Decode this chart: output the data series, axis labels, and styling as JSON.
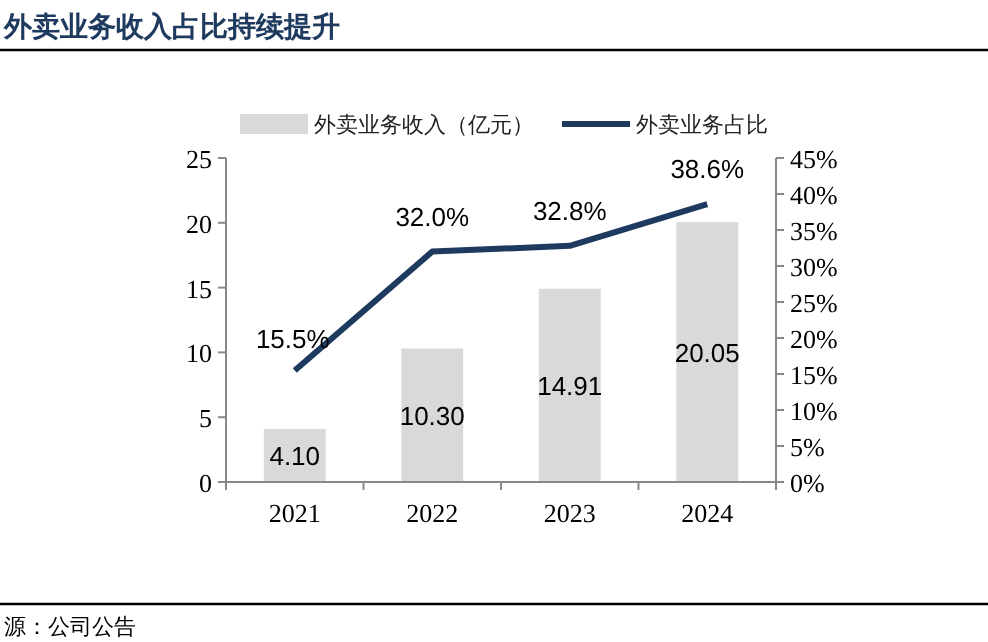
{
  "chart_data": {
    "type": "bar",
    "title": "外卖业务收入占比持续提升",
    "categories": [
      "2021",
      "2022",
      "2023",
      "2024"
    ],
    "series": [
      {
        "name": "外卖业务收入（亿元）",
        "color": "#d9d9d9",
        "values": [
          4.1,
          10.3,
          14.91,
          20.05
        ],
        "value_labels": [
          "4.10",
          "10.30",
          "14.91",
          "20.05"
        ]
      },
      {
        "name": "外卖业务占比",
        "type": "line",
        "axis": "y2",
        "color": "#1f3a5f",
        "values": [
          15.5,
          32.0,
          32.8,
          38.6
        ],
        "value_labels": [
          "15.5%",
          "32.0%",
          "32.8%",
          "38.6%"
        ]
      }
    ],
    "ylim": [
      0,
      25
    ],
    "yticks": [
      0,
      5,
      10,
      15,
      20,
      25
    ],
    "y2lim": [
      0,
      45
    ],
    "y2ticks": [
      {
        "value": 0,
        "label": "0%"
      },
      {
        "value": 5,
        "label": "5%"
      },
      {
        "value": 10,
        "label": "10%"
      },
      {
        "value": 15,
        "label": "15%"
      },
      {
        "value": 20,
        "label": "20%"
      },
      {
        "value": 25,
        "label": "25%"
      },
      {
        "value": 30,
        "label": "30%"
      },
      {
        "value": 35,
        "label": "35%"
      },
      {
        "value": 40,
        "label": "40%"
      },
      {
        "value": 45,
        "label": "45%"
      }
    ],
    "legend": "top",
    "grid": false,
    "marker": "none",
    "line_style": "solid",
    "annotations": [
      "源：公司公告"
    ]
  }
}
